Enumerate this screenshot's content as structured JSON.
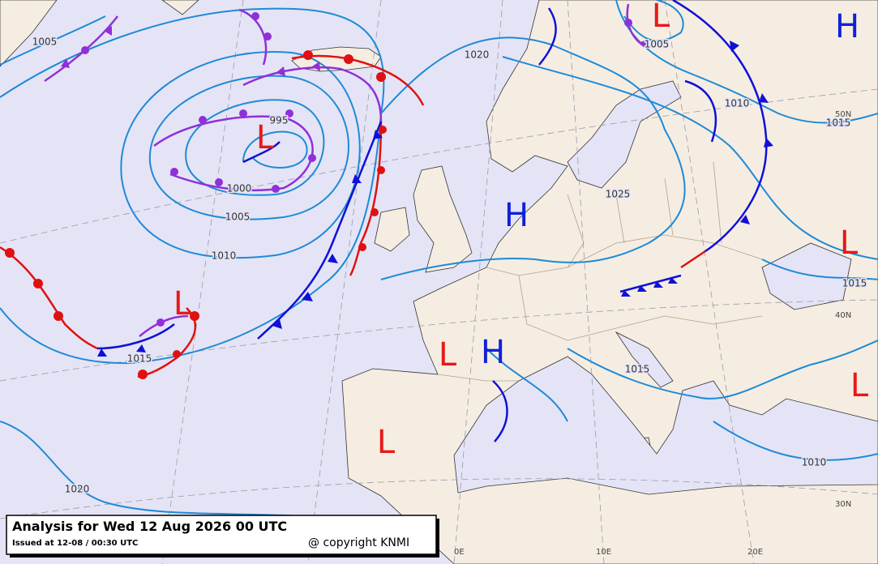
{
  "header": {
    "title": "Analysis for Wed 12 Aug 2026 00 UTC",
    "issued": "Issued at 12-08 / 00:30 UTC",
    "copyright": "@ copyright KNMI"
  },
  "pressure_centers": [
    "L",
    "L",
    "H",
    "H",
    "L",
    "L",
    "L",
    "H",
    "L",
    "L"
  ],
  "isobar_labels": [
    "1005",
    "995",
    "1000",
    "1005",
    "1010",
    "1015",
    "1020",
    "1005",
    "1010",
    "1015",
    "1025",
    "1015",
    "1015",
    "1010",
    "1020"
  ],
  "graticule_labels": [
    "0E",
    "10E",
    "20E",
    "30N",
    "40N",
    "50N"
  ]
}
